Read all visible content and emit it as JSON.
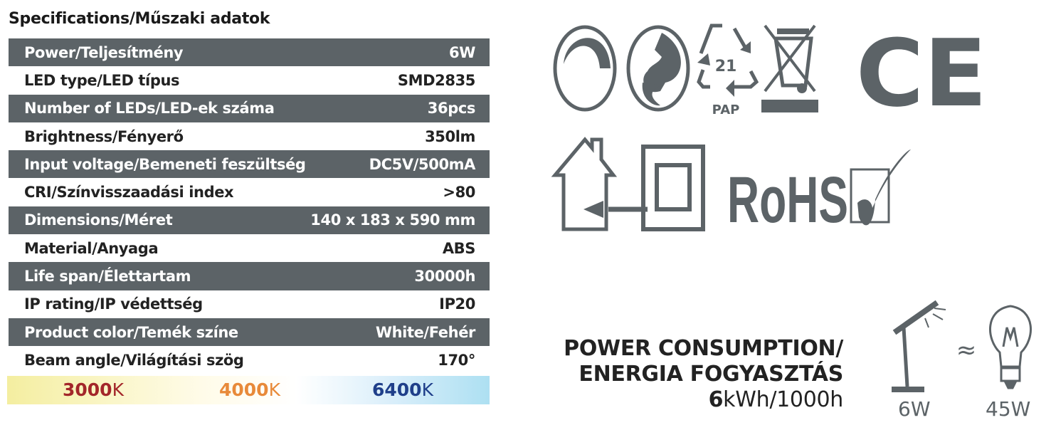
{
  "title": "Specifications/Műszaki adatok",
  "specs": [
    {
      "label": "Power/Teljesítmény",
      "value": "6W"
    },
    {
      "label": "LED type/LED típus",
      "value": "SMD2835"
    },
    {
      "label": "Number of LEDs/LED-ek száma",
      "value": "36pcs"
    },
    {
      "label": "Brightness/Fényerő",
      "value": "350lm"
    },
    {
      "label": "Input voltage/Bemeneti feszültség",
      "value": "DC5V/500mA"
    },
    {
      "label": "CRI/Színvisszaadási index",
      "value": ">80"
    },
    {
      "label": "Dimensions/Méret",
      "value": "140 x 183 x 590 mm"
    },
    {
      "label": "Material/Anyaga",
      "value": "ABS"
    },
    {
      "label": "Life span/Élettartam",
      "value": "30000h"
    },
    {
      "label": "IP rating/IP védettség",
      "value": "IP20"
    },
    {
      "label": "Product color/Temék színe",
      "value": "White/Fehér"
    },
    {
      "label": "Beam angle/Világítási szög",
      "value": "170°"
    }
  ],
  "color_temps": [
    {
      "num": "3000",
      "unit": "K",
      "color": "#a3262a"
    },
    {
      "num": "4000",
      "unit": "K",
      "color": "#e88a3a"
    },
    {
      "num": "6400",
      "unit": "K",
      "color": "#1f3f8a"
    }
  ],
  "icons": {
    "recycle_code": "21",
    "recycle_material": "PAP",
    "ce": "CE",
    "rohs": "RoHS",
    "names": [
      "circle-arrow-icon",
      "green-dot-icon",
      "recycle-pap-icon",
      "weee-bin-icon",
      "ce-mark-icon",
      "indoor-use-icon",
      "class-ii-double-insulation-icon",
      "rohs-icon"
    ],
    "color": "#5c6367"
  },
  "power": {
    "line1": "POWER CONSUMPTION/",
    "line2": "ENERGIA FOGYASZTÁS",
    "kwh_num": "6",
    "kwh_unit": "kWh/1000h",
    "led_watt": "6W",
    "approx": "≈",
    "bulb_watt": "45W"
  }
}
